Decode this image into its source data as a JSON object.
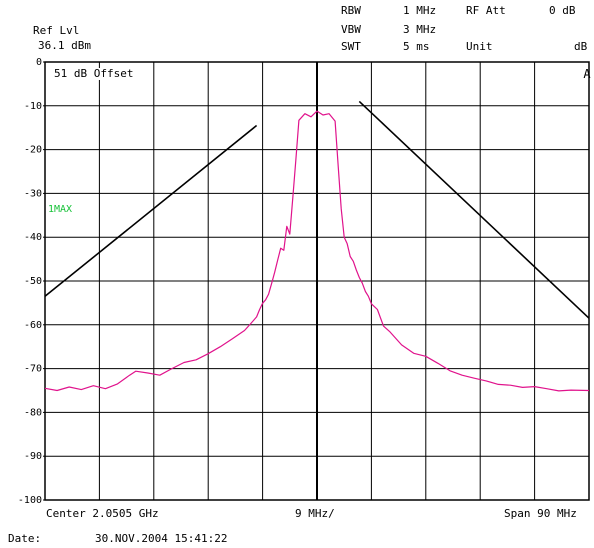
{
  "header": {
    "ref_lvl_label": "Ref Lvl",
    "ref_lvl_value": "36.1 dBm",
    "rbw_label": "RBW",
    "rbw_value": "1 MHz",
    "vbw_label": "VBW",
    "vbw_value": "3 MHz",
    "swt_label": "SWT",
    "swt_value": "5 ms",
    "rf_att_label": "RF Att",
    "rf_att_value": "0 dB",
    "unit_label": "Unit",
    "unit_value": "dB"
  },
  "annotations": {
    "offset_label": "51 dB Offset",
    "trace_label": "1MAX",
    "side_marker": "A"
  },
  "footer": {
    "center_label": "Center 2.0505 GHz",
    "div_label": "9 MHz/",
    "span_label": "Span 90 MHz",
    "date_label": "Date:",
    "date_value": "30.NOV.2004  15:41:22"
  },
  "colors": {
    "trace": "#e0138c",
    "grid": "#000000",
    "mask": "#000000",
    "label_green": "#19c23a"
  },
  "chart_data": {
    "type": "line",
    "xlabel": "",
    "ylabel": "",
    "xlim": [
      -45,
      45
    ],
    "ylim": [
      -100,
      0
    ],
    "y_ticks": [
      0,
      -10,
      -20,
      -30,
      -40,
      -50,
      -60,
      -70,
      -80,
      -90,
      -100
    ],
    "y_tick_labels": [
      "0",
      "-10",
      "-20",
      "-30",
      "-40",
      "-50",
      "-60",
      "-70",
      "-80",
      "-90",
      "-100"
    ],
    "grid": true,
    "series": [
      {
        "role": "trace",
        "x": [
          -45,
          -43,
          -41,
          -39,
          -37,
          -35,
          -33,
          -31,
          -30,
          -28,
          -26,
          -24,
          -22,
          -20,
          -18,
          -16,
          -14,
          -12,
          -11,
          -10,
          -9.5,
          -9,
          -8.5,
          -8,
          -7.5,
          -7,
          -6.5,
          -6,
          -5.5,
          -5,
          -4.5,
          -4,
          -3.5,
          -3,
          -2,
          -1,
          0,
          1,
          2,
          3,
          3.5,
          4,
          4.5,
          5,
          5.5,
          6,
          6.5,
          7,
          7.5,
          8,
          8.5,
          9,
          10,
          11,
          12,
          14,
          16,
          18,
          20,
          22,
          24,
          26,
          28,
          30,
          32,
          34,
          36,
          38,
          40,
          42,
          45
        ],
        "y": [
          -74.5,
          -75,
          -74.2,
          -74.8,
          -73.9,
          -74.6,
          -73.5,
          -71.5,
          -70.6,
          -71,
          -71.5,
          -70,
          -68.6,
          -68,
          -66.6,
          -65,
          -63.2,
          -61.3,
          -59.8,
          -58.2,
          -56.5,
          -55.1,
          -54.3,
          -53,
          -50.5,
          -48,
          -45.2,
          -42.5,
          -43,
          -37.5,
          -39.3,
          -31,
          -22.5,
          -13.3,
          -11.8,
          -12.5,
          -11.2,
          -12.1,
          -11.8,
          -13.5,
          -23.8,
          -33.5,
          -40,
          -41.5,
          -44.4,
          -45.5,
          -47.5,
          -49.2,
          -50.5,
          -52.4,
          -53.5,
          -55.2,
          -56.5,
          -60.3,
          -61.5,
          -64.6,
          -66.5,
          -67.2,
          -68.8,
          -70.5,
          -71.5,
          -72.2,
          -72.8,
          -73.6,
          -73.8,
          -74.3,
          -74.1,
          -74.6,
          -75.1,
          -74.9,
          -75
        ]
      },
      {
        "role": "mask-left",
        "x": [
          -45,
          -10
        ],
        "y": [
          -53.5,
          -14.5
        ]
      },
      {
        "role": "mask-right",
        "x": [
          7,
          45
        ],
        "y": [
          -9,
          -58.5
        ]
      }
    ]
  }
}
